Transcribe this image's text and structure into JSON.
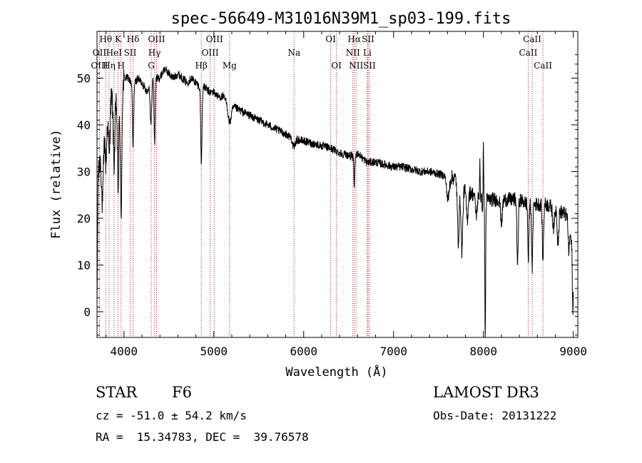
{
  "chart_data": {
    "type": "line",
    "title": "spec-56649-M31016N39M1_sp03-199.fits",
    "xlabel": "Wavelength (Å)",
    "ylabel": "Flux (relative)",
    "xlim": [
      3700,
      9050
    ],
    "ylim": [
      -5.5,
      60
    ],
    "xticks": [
      4000,
      5000,
      6000,
      7000,
      8000,
      9000
    ],
    "yticks": [
      0,
      10,
      20,
      30,
      40,
      50
    ],
    "anchors": [
      [
        3700,
        0
      ],
      [
        3712,
        30
      ],
      [
        3740,
        36
      ],
      [
        3775,
        38
      ],
      [
        3800,
        43
      ],
      [
        3830,
        45
      ],
      [
        3860,
        46
      ],
      [
        3900,
        46
      ],
      [
        3935,
        43
      ],
      [
        3970,
        44
      ],
      [
        4000,
        50
      ],
      [
        4050,
        50
      ],
      [
        4100,
        48
      ],
      [
        4150,
        50
      ],
      [
        4200,
        49
      ],
      [
        4260,
        47
      ],
      [
        4300,
        50
      ],
      [
        4350,
        50
      ],
      [
        4400,
        50
      ],
      [
        4450,
        52
      ],
      [
        4500,
        51
      ],
      [
        4550,
        50
      ],
      [
        4600,
        51
      ],
      [
        4650,
        50
      ],
      [
        4700,
        49
      ],
      [
        4750,
        50
      ],
      [
        4800,
        49
      ],
      [
        4850,
        48
      ],
      [
        4900,
        48
      ],
      [
        4950,
        47
      ],
      [
        5000,
        47
      ],
      [
        5050,
        46
      ],
      [
        5100,
        46
      ],
      [
        5150,
        45
      ],
      [
        5200,
        44
      ],
      [
        5300,
        43
      ],
      [
        5400,
        42
      ],
      [
        5500,
        41
      ],
      [
        5600,
        40
      ],
      [
        5700,
        39
      ],
      [
        5800,
        38
      ],
      [
        5900,
        37
      ],
      [
        6000,
        36.5
      ],
      [
        6100,
        36
      ],
      [
        6200,
        35.5
      ],
      [
        6300,
        35
      ],
      [
        6400,
        34
      ],
      [
        6500,
        33.5
      ],
      [
        6560,
        33
      ],
      [
        6600,
        34
      ],
      [
        6700,
        32
      ],
      [
        6800,
        32
      ],
      [
        6900,
        31.5
      ],
      [
        7000,
        31
      ],
      [
        7100,
        31
      ],
      [
        7200,
        30.5
      ],
      [
        7300,
        30
      ],
      [
        7400,
        30
      ],
      [
        7500,
        29.5
      ],
      [
        7600,
        29
      ],
      [
        7700,
        28.5
      ],
      [
        7720,
        27
      ],
      [
        7760,
        27
      ],
      [
        7800,
        26
      ],
      [
        7900,
        25
      ],
      [
        8000,
        24
      ],
      [
        8100,
        24
      ],
      [
        8200,
        24
      ],
      [
        8300,
        24
      ],
      [
        8400,
        24
      ],
      [
        8500,
        23
      ],
      [
        8600,
        23
      ],
      [
        8700,
        23
      ],
      [
        8800,
        22
      ],
      [
        8900,
        21
      ],
      [
        8950,
        20
      ],
      [
        9000,
        10
      ]
    ],
    "features": [
      [
        3727,
        -2.0,
        20
      ],
      [
        3760,
        -14,
        15
      ],
      [
        3800,
        -11,
        13
      ],
      [
        3835,
        -12,
        13
      ],
      [
        3890,
        -14,
        13
      ],
      [
        3934,
        -17,
        10
      ],
      [
        3968,
        -25,
        10
      ],
      [
        4101,
        -13,
        9
      ],
      [
        4300,
        -10,
        12
      ],
      [
        4341,
        -14,
        9
      ],
      [
        4861,
        -16,
        10
      ],
      [
        5175,
        -4,
        25
      ],
      [
        5890,
        -2,
        20
      ],
      [
        6563,
        -6,
        8
      ],
      [
        7605,
        -5,
        20
      ],
      [
        7720,
        -12,
        14
      ],
      [
        7760,
        -14,
        14
      ],
      [
        7820,
        -6,
        14
      ],
      [
        7920,
        -4,
        14
      ],
      [
        8000,
        -3,
        14
      ],
      [
        8020,
        -30,
        6
      ],
      [
        8200,
        -5,
        14
      ],
      [
        8380,
        -14,
        10
      ],
      [
        8500,
        -12,
        9
      ],
      [
        8542,
        -14,
        9
      ],
      [
        8662,
        -12,
        10
      ],
      [
        8780,
        -4,
        14
      ],
      [
        8830,
        -11,
        10
      ],
      [
        8950,
        -7,
        10
      ],
      [
        8995,
        -12,
        6
      ],
      [
        8000,
        15,
        5
      ],
      [
        7960,
        8,
        5
      ],
      [
        8830,
        5,
        6
      ]
    ],
    "lines": [
      {
        "label": "Hθ",
        "wave": 3797,
        "row": 0
      },
      {
        "label": "OII",
        "wave": 3727,
        "row": 1
      },
      {
        "label": "OIII",
        "wave": 3727,
        "row": 2
      },
      {
        "label": "Hη",
        "wave": 3835,
        "row": 2
      },
      {
        "label": "HeI",
        "wave": 3889,
        "row": 1
      },
      {
        "label": "K",
        "wave": 3934,
        "row": 0
      },
      {
        "label": "H",
        "wave": 3968,
        "row": 2
      },
      {
        "label": "SII",
        "wave": 4069,
        "row": 1
      },
      {
        "label": "Hδ",
        "wave": 4101,
        "row": 0
      },
      {
        "label": "OIII",
        "wave": 4363,
        "row": 0
      },
      {
        "label": "Hγ",
        "wave": 4340,
        "row": 1
      },
      {
        "label": "G",
        "wave": 4304,
        "row": 2
      },
      {
        "label": "Hβ",
        "wave": 4861,
        "row": 2
      },
      {
        "label": "OIII",
        "wave": 5007,
        "row": 0
      },
      {
        "label": "OIII",
        "wave": 4959,
        "row": 1
      },
      {
        "label": "Mg",
        "wave": 5175,
        "row": 2
      },
      {
        "label": "Na",
        "wave": 5893,
        "row": 1
      },
      {
        "label": "OI",
        "wave": 6300,
        "row": 0
      },
      {
        "label": "OI",
        "wave": 6364,
        "row": 2
      },
      {
        "label": "Hα",
        "wave": 6563,
        "row": 0
      },
      {
        "label": "NII",
        "wave": 6548,
        "row": 1
      },
      {
        "label": "NII",
        "wave": 6583,
        "row": 2
      },
      {
        "label": "SII",
        "wave": 6716,
        "row": 0
      },
      {
        "label": "Li",
        "wave": 6708,
        "row": 1
      },
      {
        "label": "SII",
        "wave": 6731,
        "row": 2
      },
      {
        "label": "CaII",
        "wave": 8542,
        "row": 0
      },
      {
        "label": "CaII",
        "wave": 8498,
        "row": 1
      },
      {
        "label": "CaII",
        "wave": 8662,
        "row": 2
      }
    ]
  },
  "info": {
    "object_class": "STAR",
    "subclass": "F6",
    "cz": "cz = -51.0 ± 54.2 km/s",
    "coords": "RA =  15.34783, DEC =  39.76578",
    "survey": "LAMOST DR3",
    "obs_date": "Obs-Date: 20131222"
  },
  "colors": {
    "spectrum": "#000000",
    "line_markers": "#b22222",
    "axes": "#000000"
  }
}
